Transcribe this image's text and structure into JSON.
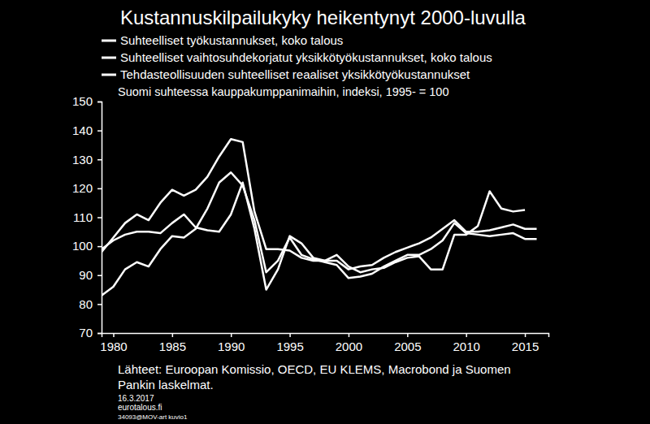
{
  "chart_data": {
    "type": "line",
    "title": "Kustannuskilpailukyky heikentynyt 2000-luvulla",
    "subtitle": "Suomi suhteessa kauppakumppanimaihin,  indeksi, 1995- = 100",
    "source": [
      "Lähteet: Euroopan Komissio, OECD, EU KLEMS, Macrobond ja Suomen",
      "Pankin laskelmat."
    ],
    "footer": [
      "16.3.2017",
      "eurotalous.fi",
      "34093@MOV-art kuvio1"
    ],
    "x": [
      1979,
      1980,
      1981,
      1982,
      1983,
      1984,
      1985,
      1986,
      1987,
      1988,
      1989,
      1990,
      1991,
      1992,
      1993,
      1994,
      1995,
      1996,
      1997,
      1998,
      1999,
      2000,
      2001,
      2002,
      2003,
      2004,
      2005,
      2006,
      2007,
      2008,
      2009,
      2010,
      2011,
      2012,
      2013,
      2014,
      2015,
      2016
    ],
    "series": [
      {
        "name": "Suhteelliset työkustannukset, koko talous",
        "color": "#ffffff",
        "values": [
          98,
          103,
          108,
          111,
          109,
          115,
          119.5,
          117.5,
          119.5,
          124,
          131,
          137,
          136,
          112,
          99,
          99,
          98.5,
          96,
          95,
          95,
          95,
          92,
          93,
          93.5,
          96,
          98,
          99.5,
          101,
          103,
          106,
          109,
          105,
          105,
          105.5,
          106.5,
          107.5,
          106,
          106
        ]
      },
      {
        "name": "Suhteelliset vaihtosuhdekorjatut yksikkötyökustannukset, koko talous",
        "color": "#ffffff",
        "values": [
          83,
          86,
          92,
          94.5,
          93,
          99,
          103.5,
          103,
          106,
          113,
          122,
          125.5,
          121,
          109,
          91,
          95,
          103,
          97,
          95.5,
          94.5,
          93.5,
          89,
          89.5,
          90.5,
          93,
          95,
          97,
          97,
          99,
          102,
          108,
          104.5,
          104,
          103.5,
          104,
          104.5,
          102.5,
          102.5
        ]
      },
      {
        "name": "Tehdasteollisuuden suhteelliset reaaliset yksikkötyökustannukset",
        "color": "#ffffff",
        "values": [
          99,
          102,
          104,
          105,
          105,
          104.5,
          108,
          111,
          106.5,
          105.5,
          105,
          111,
          122,
          106,
          85,
          92,
          103.5,
          101,
          96,
          95,
          97,
          93,
          91,
          92,
          92.5,
          94.5,
          96,
          96.5,
          92,
          92,
          104,
          104,
          107,
          119,
          113,
          112,
          112.5,
          null
        ]
      }
    ],
    "xlim": [
      1979,
      2017
    ],
    "xticks": [
      1980,
      1985,
      1990,
      1995,
      2000,
      2005,
      2010,
      2015
    ],
    "ylim": [
      70,
      150
    ],
    "yticks": [
      70,
      80,
      90,
      100,
      110,
      120,
      130,
      140,
      150
    ],
    "grid": false,
    "legend": "top-left",
    "line_style": "solid"
  }
}
